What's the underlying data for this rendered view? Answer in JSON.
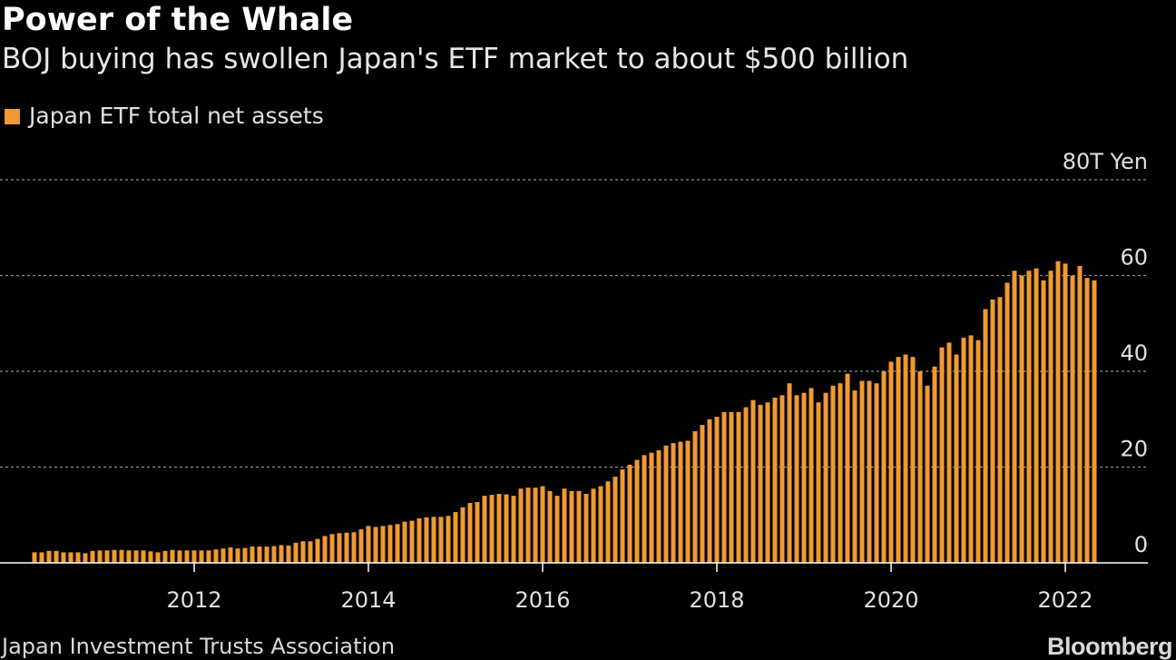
{
  "header": {
    "title": "Power of the Whale",
    "subtitle": "BOJ buying has swollen Japan's ETF market to about $500 billion"
  },
  "legend": {
    "label": "Japan ETF total net assets",
    "color": "#f09a31"
  },
  "footer": {
    "source": "Japan Investment Trusts Association",
    "brand": "Bloomberg"
  },
  "colors": {
    "background": "#000000",
    "bar": "#f09a31",
    "gridline": "#8c8c8c",
    "axis": "#ffffff",
    "tick_text": "#e0e0e0"
  },
  "chart_data": {
    "type": "bar",
    "title": "Power of the Whale",
    "subtitle": "BOJ buying has swollen Japan's ETF market to about $500 billion",
    "ylabel": "",
    "y_unit_label": "80T Yen",
    "ylim": [
      0,
      80
    ],
    "y_ticks": [
      0,
      20,
      40,
      60,
      80
    ],
    "y_tick_labels": [
      "0",
      "20",
      "40",
      "60",
      "80T Yen"
    ],
    "x_tick_labels": [
      "2012",
      "2014",
      "2016",
      "2018",
      "2020",
      "2022"
    ],
    "x_tick_dates": [
      "2012-01",
      "2014-01",
      "2016-01",
      "2018-01",
      "2020-01",
      "2022-01"
    ],
    "grid": true,
    "legend_position": "top-left",
    "series": [
      {
        "name": "Japan ETF total net assets",
        "start_month": "2010-03",
        "end_month": "2022-02",
        "frequency": "monthly",
        "values": [
          2.2,
          2.2,
          2.5,
          2.5,
          2.2,
          2.2,
          2.2,
          2.0,
          2.5,
          2.6,
          2.6,
          2.7,
          2.7,
          2.6,
          2.6,
          2.6,
          2.4,
          2.2,
          2.5,
          2.7,
          2.6,
          2.6,
          2.6,
          2.6,
          2.6,
          2.8,
          3.0,
          3.2,
          3.0,
          3.1,
          3.4,
          3.4,
          3.4,
          3.5,
          3.7,
          3.6,
          4.2,
          4.5,
          4.5,
          5.0,
          5.6,
          6.0,
          6.2,
          6.3,
          6.4,
          7.0,
          7.7,
          7.5,
          7.7,
          7.9,
          8.1,
          8.6,
          8.8,
          9.3,
          9.5,
          9.6,
          9.6,
          9.8,
          10.6,
          11.6,
          12.5,
          12.7,
          14.0,
          14.2,
          14.4,
          14.3,
          14.0,
          15.5,
          15.7,
          15.7,
          16.0,
          15.0,
          14.0,
          15.5,
          15.0,
          15.0,
          14.4,
          15.5,
          16.0,
          17.0,
          18.0,
          19.5,
          20.5,
          21.5,
          22.5,
          23.0,
          23.5,
          24.5,
          25.0,
          25.3,
          25.5,
          27.5,
          28.8,
          30.0,
          30.5,
          31.5,
          31.5,
          31.5,
          32.5,
          34.0,
          33.0,
          33.5,
          34.5,
          35.0,
          37.5,
          35.0,
          35.5,
          36.5,
          33.5,
          35.5,
          37.0,
          37.5,
          39.5,
          36.0,
          38.0,
          38.0,
          37.5,
          40.0,
          42.0,
          43.0,
          43.5,
          43.0,
          40.0,
          37.0,
          41.0,
          45.0,
          46.0,
          43.5,
          47.0,
          47.5,
          46.5,
          53.0,
          55.0,
          55.5,
          58.5,
          61.0,
          60.0,
          61.0,
          61.5,
          59.0,
          61.0,
          63.0,
          62.5,
          60.0,
          62.0,
          59.5,
          59.0
        ]
      }
    ]
  }
}
